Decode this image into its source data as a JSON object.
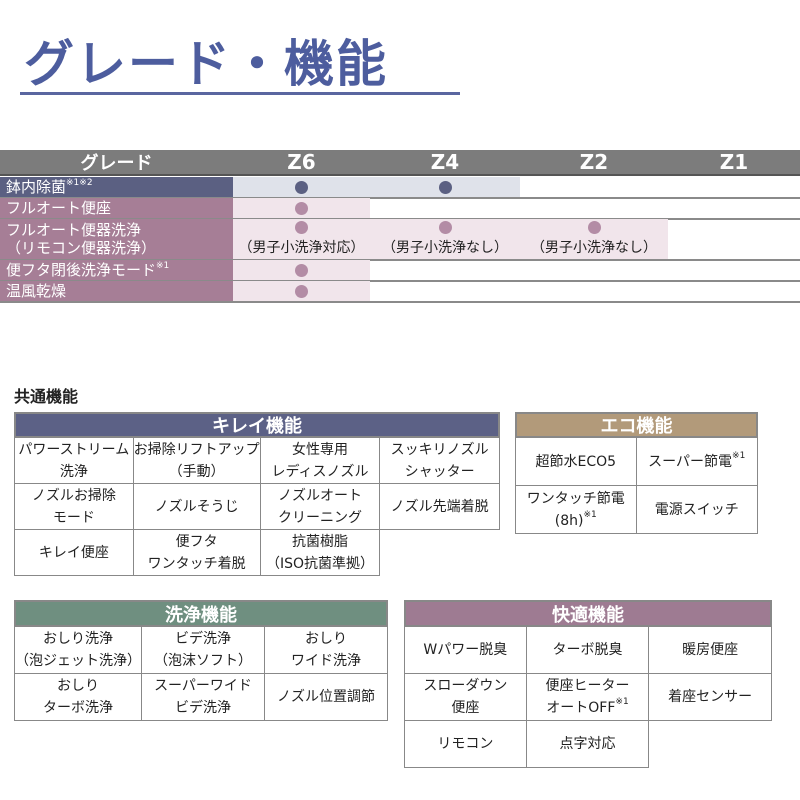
{
  "title": "グレード・機能",
  "grade_table": {
    "header": {
      "label": "グレード",
      "grades": [
        "Z6",
        "Z4",
        "Z2",
        "Z1"
      ]
    },
    "rows": [
      {
        "label": "鉢内除菌",
        "note": "※1※2",
        "color": "#5b6082",
        "fill": "#dfe2ea",
        "cells": [
          {
            "dot": true
          },
          {
            "dot": true
          },
          {
            "dot": false
          },
          {
            "dot": false
          }
        ]
      },
      {
        "label": "フルオート便座",
        "note": "",
        "color": "#a67e96",
        "fill": "#f1e5eb",
        "cells": [
          {
            "dot": true
          },
          {
            "dot": false
          },
          {
            "dot": false
          },
          {
            "dot": false
          }
        ]
      },
      {
        "label": "フルオート便器洗浄",
        "label2": "（リモコン便器洗浄）",
        "note": "",
        "color": "#a67e96",
        "fill": "#f1e5eb",
        "cells": [
          {
            "dot": true,
            "sub": "（男子小洗浄対応）"
          },
          {
            "dot": true,
            "sub": "（男子小洗浄なし）"
          },
          {
            "dot": true,
            "sub": "（男子小洗浄なし）"
          },
          {
            "dot": false
          }
        ]
      },
      {
        "label": "便フタ閉後洗浄モード",
        "note": "※1",
        "color": "#a67e96",
        "fill": "#f1e5eb",
        "cells": [
          {
            "dot": true
          },
          {
            "dot": false
          },
          {
            "dot": false
          },
          {
            "dot": false
          }
        ]
      },
      {
        "label": "温風乾燥",
        "note": "",
        "color": "#a67e96",
        "fill": "#f1e5eb",
        "cells": [
          {
            "dot": true
          },
          {
            "dot": false
          },
          {
            "dot": false
          },
          {
            "dot": false
          }
        ]
      }
    ]
  },
  "common_heading": "共通機能",
  "sections": [
    {
      "title": "キレイ機能",
      "color": "#5c6186",
      "cols": 4,
      "items": [
        {
          "lines": [
            "パワーストリーム",
            "洗浄"
          ]
        },
        {
          "lines": [
            "お掃除リフトアップ",
            "（手動）"
          ]
        },
        {
          "lines": [
            "女性専用",
            "レディスノズル"
          ]
        },
        {
          "lines": [
            "スッキリノズル",
            "シャッター"
          ]
        },
        {
          "lines": [
            "ノズルお掃除",
            "モード"
          ]
        },
        {
          "lines": [
            "ノズルそうじ"
          ]
        },
        {
          "lines": [
            "ノズルオート",
            "クリーニング"
          ]
        },
        {
          "lines": [
            "ノズル先端着脱"
          ]
        },
        {
          "lines": [
            "キレイ便座"
          ]
        },
        {
          "lines": [
            "便フタ",
            "ワンタッチ着脱"
          ]
        },
        {
          "lines": [
            "抗菌樹脂",
            "（ISO抗菌準拠）"
          ]
        }
      ]
    },
    {
      "title": "エコ機能",
      "color": "#b29a7a",
      "cols": 2,
      "items": [
        {
          "lines": [
            "超節水ECO5"
          ]
        },
        {
          "lines": [
            "スーパー節電"
          ],
          "note": "※1"
        },
        {
          "lines": [
            "ワンタッチ節電",
            "(8h)"
          ],
          "note": "※1"
        },
        {
          "lines": [
            "電源スイッチ"
          ]
        }
      ]
    },
    {
      "title": "洗浄機能",
      "color": "#6f8f80",
      "cols": 3,
      "items": [
        {
          "lines": [
            "おしり洗浄",
            "（泡ジェット洗浄）"
          ]
        },
        {
          "lines": [
            "ビデ洗浄",
            "（泡沫ソフト）"
          ]
        },
        {
          "lines": [
            "おしり",
            "ワイド洗浄"
          ]
        },
        {
          "lines": [
            "おしり",
            "ターボ洗浄"
          ]
        },
        {
          "lines": [
            "スーパーワイド",
            "ビデ洗浄"
          ]
        },
        {
          "lines": [
            "ノズル位置調節"
          ]
        }
      ]
    },
    {
      "title": "快適機能",
      "color": "#9e7b92",
      "cols": 3,
      "items": [
        {
          "lines": [
            "Wパワー脱臭"
          ]
        },
        {
          "lines": [
            "ターボ脱臭"
          ]
        },
        {
          "lines": [
            "暖房便座"
          ]
        },
        {
          "lines": [
            "スローダウン",
            "便座"
          ]
        },
        {
          "lines": [
            "便座ヒーター",
            "オートOFF"
          ],
          "note": "※1"
        },
        {
          "lines": [
            "着座センサー"
          ]
        },
        {
          "lines": [
            "リモコン"
          ]
        },
        {
          "lines": [
            "点字対応"
          ]
        }
      ]
    }
  ]
}
